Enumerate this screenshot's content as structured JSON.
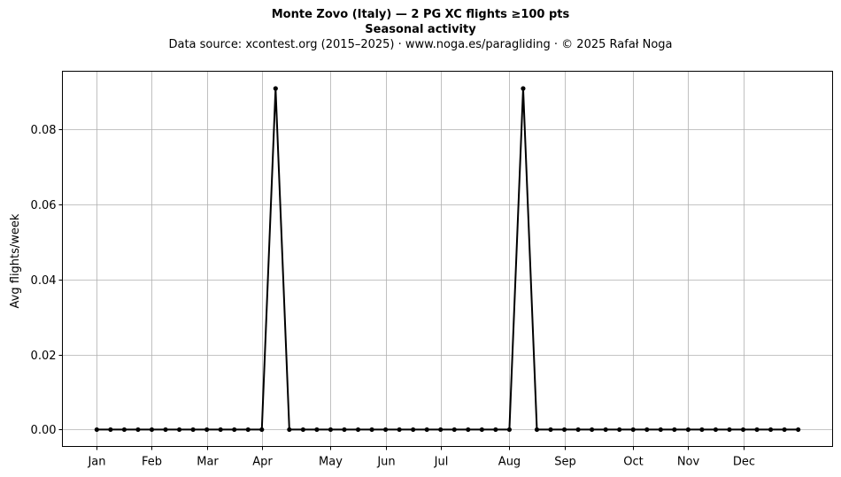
{
  "chart_data": {
    "type": "line",
    "title": "Monte Zovo (Italy)  —  2 PG XC flights ≥100 pts",
    "subtitle": "Seasonal activity",
    "source_note": "Data source: xcontest.org (2015–2025)  ·  www.noga.es/paragliding  ·  © 2025 Rafał Noga",
    "ylabel": "Avg flights/week",
    "xlabel": "",
    "x_unit": "week of year",
    "xlim": [
      -1.5,
      54.5
    ],
    "ylim": [
      -0.0045,
      0.0955
    ],
    "grid": true,
    "yticks": [
      0.0,
      0.02,
      0.04,
      0.06,
      0.08
    ],
    "ytick_labels": [
      "0.00",
      "0.02",
      "0.04",
      "0.06",
      "0.08"
    ],
    "month_ticks": [
      {
        "label": "Jan",
        "week": 1
      },
      {
        "label": "Feb",
        "week": 5
      },
      {
        "label": "Mar",
        "week": 9
      },
      {
        "label": "Apr",
        "week": 13
      },
      {
        "label": "May",
        "week": 18
      },
      {
        "label": "Jun",
        "week": 22
      },
      {
        "label": "Jul",
        "week": 26
      },
      {
        "label": "Aug",
        "week": 31
      },
      {
        "label": "Sep",
        "week": 35
      },
      {
        "label": "Oct",
        "week": 40
      },
      {
        "label": "Nov",
        "week": 44
      },
      {
        "label": "Dec",
        "week": 48
      }
    ],
    "series": [
      {
        "color": "#000000",
        "marker": "dot",
        "x": [
          1,
          2,
          3,
          4,
          5,
          6,
          7,
          8,
          9,
          10,
          11,
          12,
          13,
          14,
          15,
          16,
          17,
          18,
          19,
          20,
          21,
          22,
          23,
          24,
          25,
          26,
          27,
          28,
          29,
          30,
          31,
          32,
          33,
          34,
          35,
          36,
          37,
          38,
          39,
          40,
          41,
          42,
          43,
          44,
          45,
          46,
          47,
          48,
          49,
          50,
          51,
          52
        ],
        "values": [
          0,
          0,
          0,
          0,
          0,
          0,
          0,
          0,
          0,
          0,
          0,
          0,
          0,
          0.0909,
          0,
          0,
          0,
          0,
          0,
          0,
          0,
          0,
          0,
          0,
          0,
          0,
          0,
          0,
          0,
          0,
          0,
          0.0909,
          0,
          0,
          0,
          0,
          0,
          0,
          0,
          0,
          0,
          0,
          0,
          0,
          0,
          0,
          0,
          0,
          0,
          0,
          0,
          0
        ]
      }
    ]
  }
}
